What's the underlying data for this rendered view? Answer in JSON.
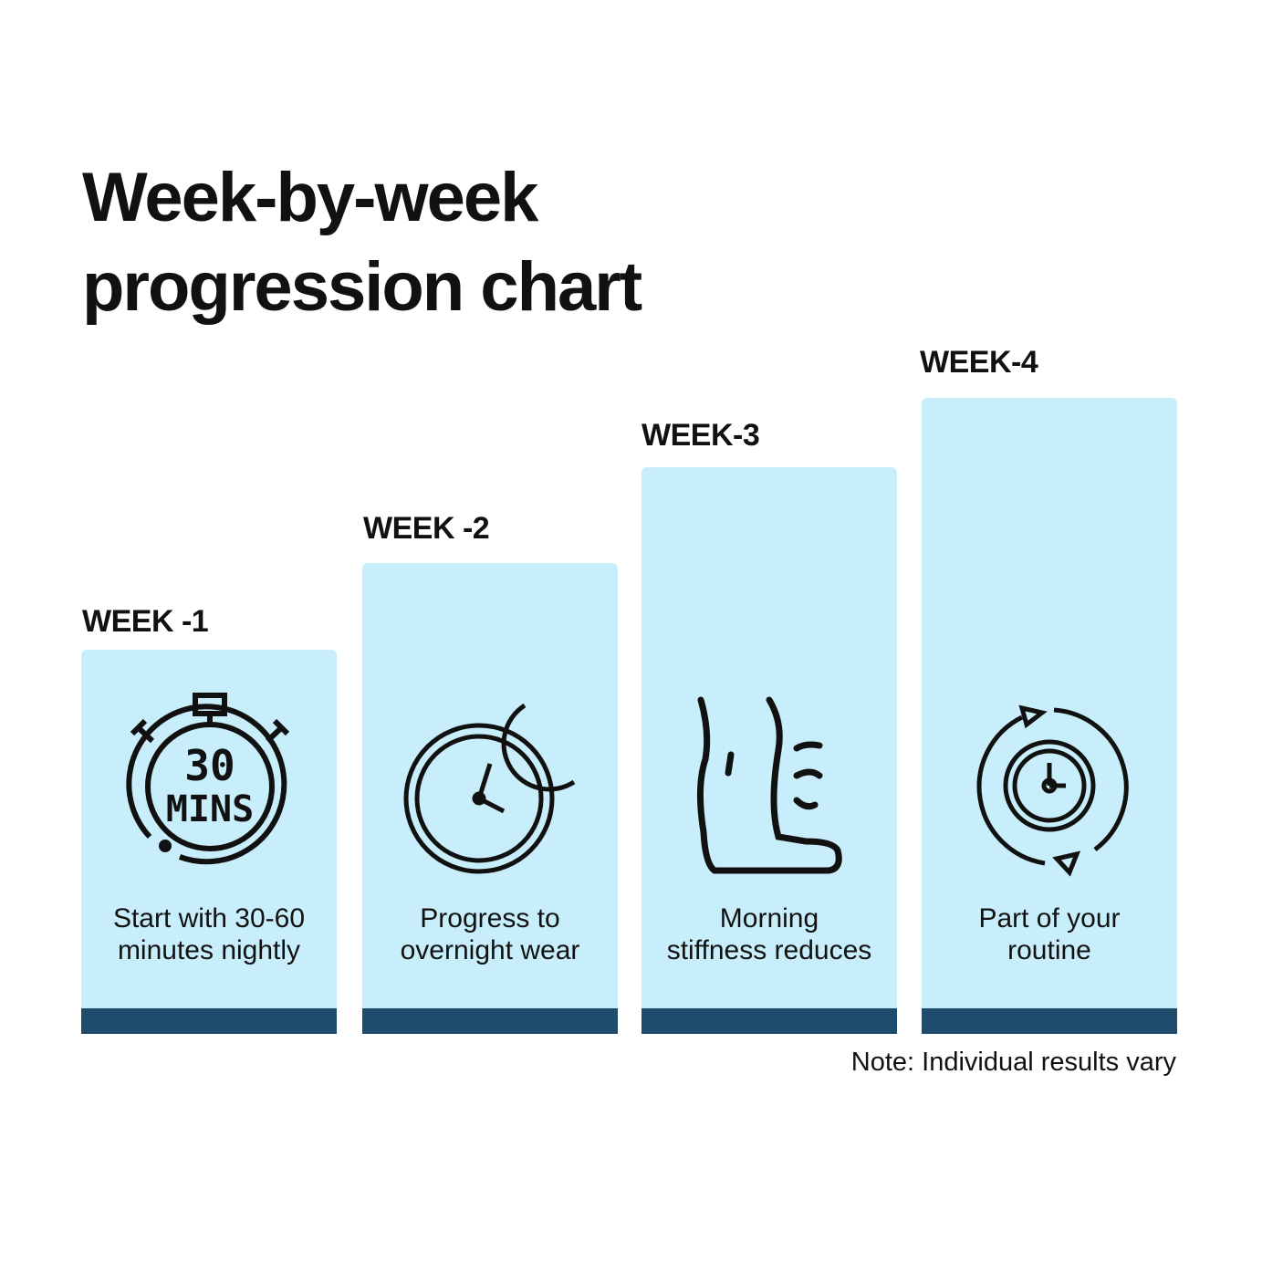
{
  "title_lines": [
    "Week-by-week",
    "progression chart"
  ],
  "colors": {
    "bar": "#c7eefa",
    "base": "#1f4b6c",
    "text": "#111111"
  },
  "weeks": [
    {
      "label": "WEEK -1",
      "icon": "stopwatch-icon",
      "icon_text": [
        "30",
        "MINS"
      ],
      "desc": [
        "Start with 30-60",
        "minutes nightly"
      ],
      "level": 1
    },
    {
      "label": "WEEK -2",
      "icon": "clock-moon-icon",
      "desc": [
        "Progress to",
        "overnight wear"
      ],
      "level": 2
    },
    {
      "label": "WEEK-3",
      "icon": "leg-relief-icon",
      "desc": [
        "Morning",
        "stiffness reduces"
      ],
      "level": 3
    },
    {
      "label": "WEEK-4",
      "icon": "routine-cycle-clock-icon",
      "desc": [
        "Part of your",
        "routine"
      ],
      "level": 4
    }
  ],
  "note": "Note: Individual results vary"
}
